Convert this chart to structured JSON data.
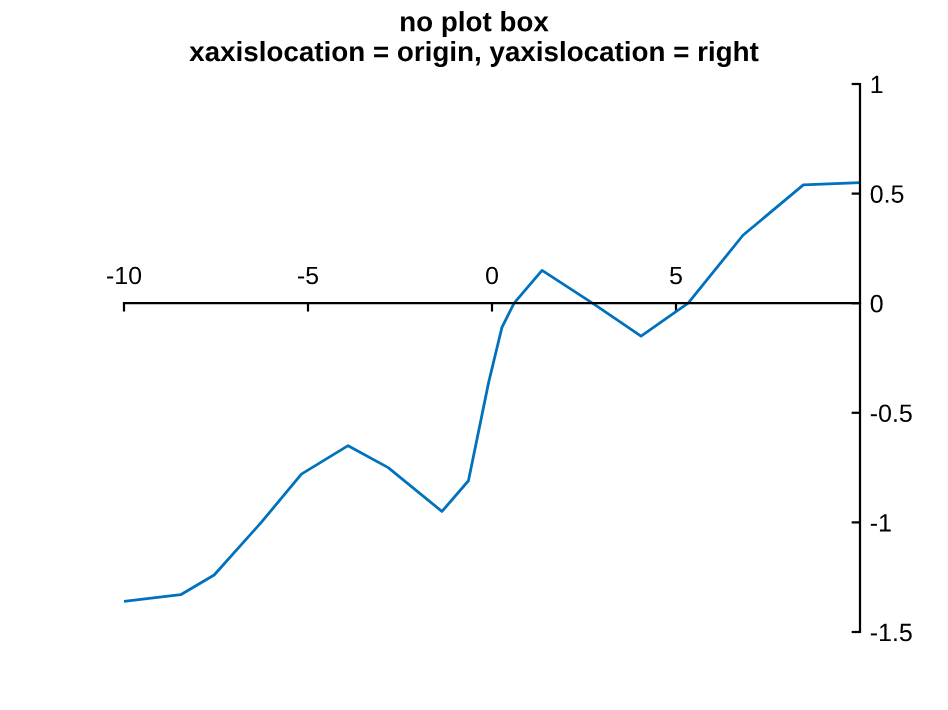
{
  "chart_data": {
    "type": "line",
    "title": "no plot box",
    "subtitle": "xaxislocation = origin, yaxislocation = right",
    "x": [
      -10,
      -8.46,
      -7.55,
      -6.27,
      -5.18,
      -3.91,
      -2.82,
      -1.36,
      -0.64,
      -0.09,
      0.27,
      0.6,
      1.36,
      2.73,
      4.05,
      5.33,
      6.82,
      8.46,
      10
    ],
    "series": [
      {
        "color": "#0072bd",
        "values": [
          -1.36,
          -1.33,
          -1.24,
          -1.0,
          -0.78,
          -0.65,
          -0.75,
          -0.95,
          -0.81,
          -0.36,
          -0.11,
          0,
          0.15,
          0,
          -0.15,
          0,
          0.31,
          0.54,
          0.55
        ]
      }
    ],
    "xlim": [
      -10,
      10
    ],
    "ylim": [
      -1.5,
      1
    ],
    "xticks": [
      -10,
      -5,
      0,
      5
    ],
    "yticks": [
      -1.5,
      -1,
      -0.5,
      0,
      0.5,
      1
    ],
    "grid": false,
    "legend": false,
    "marker": "none",
    "line_style": "solid"
  }
}
